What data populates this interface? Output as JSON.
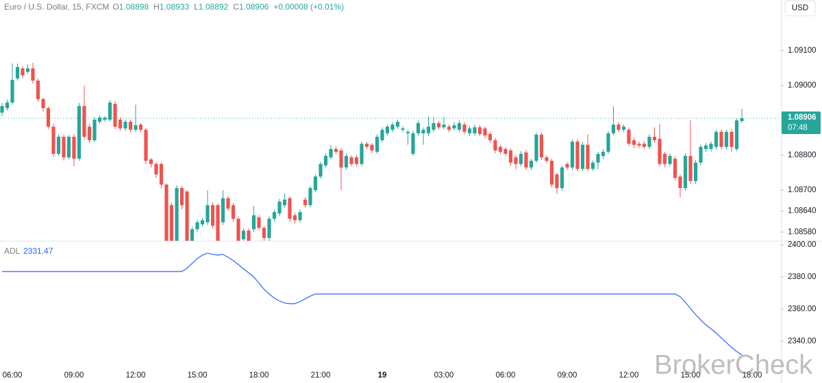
{
  "currency_button": "USD",
  "watermark": "BrokerCheck",
  "chart_data": [
    {
      "type": "candlestick",
      "title": "Euro / U.S. Dollar, 15, FXCM",
      "header": [
        {
          "key": "O",
          "text": "1.08898"
        },
        {
          "key": "H",
          "text": "1.08933"
        },
        {
          "key": "L",
          "text": "1.08892"
        },
        {
          "key": "C",
          "text": "1.08906"
        }
      ],
      "change": "+0.00008 (+0.01%)",
      "up_color": "#26a69a",
      "down_color": "#ef5350",
      "last_price": {
        "value": 1.08906,
        "label": "1.08906",
        "countdown": "07:48"
      },
      "xlim": [
        -0.4,
        151.6
      ],
      "ylim": [
        1.08555,
        1.09245
      ],
      "yticks": [
        {
          "value": 1.091,
          "label": "1.09100"
        },
        {
          "value": 1.09,
          "label": "1.09000"
        },
        {
          "value": 1.088,
          "label": "1.08800"
        },
        {
          "value": 1.087,
          "label": "1.08700"
        },
        {
          "value": 1.0864,
          "label": "1.08640"
        },
        {
          "value": 1.0858,
          "label": "1.08580"
        }
      ],
      "candles": [
        [
          1.08922,
          1.0895,
          1.08912,
          1.08941
        ],
        [
          1.08935,
          1.0896,
          1.08928,
          1.08951
        ],
        [
          1.08951,
          1.09063,
          1.08945,
          1.09016
        ],
        [
          1.0902,
          1.09063,
          1.09014,
          1.09053
        ],
        [
          1.09049,
          1.09055,
          1.0902,
          1.09029
        ],
        [
          1.09039,
          1.0906,
          1.09033,
          1.09049
        ],
        [
          1.09049,
          1.09065,
          1.09005,
          1.09014
        ],
        [
          1.09014,
          1.0902,
          1.08955,
          1.08961
        ],
        [
          1.08961,
          1.08965,
          1.08925,
          1.08935
        ],
        [
          1.08935,
          1.0894,
          1.08875,
          1.08882
        ],
        [
          1.08882,
          1.0889,
          1.08795,
          1.08804
        ],
        [
          1.08804,
          1.0886,
          1.08798,
          1.08853
        ],
        [
          1.08853,
          1.08858,
          1.08785,
          1.08794
        ],
        [
          1.08794,
          1.08858,
          1.08788,
          1.08853
        ],
        [
          1.08853,
          1.0886,
          1.08769,
          1.0879
        ],
        [
          1.0879,
          1.0895,
          1.08784,
          1.08941
        ],
        [
          1.08941,
          1.09,
          1.08845,
          1.08853
        ],
        [
          1.08882,
          1.0889,
          1.08835,
          1.08843
        ],
        [
          1.08843,
          1.0891,
          1.08838,
          1.08902
        ],
        [
          1.08896,
          1.08915,
          1.0889,
          1.08908
        ],
        [
          1.08902,
          1.08912,
          1.08895,
          1.08908
        ],
        [
          1.08902,
          1.08958,
          1.08896,
          1.08951
        ],
        [
          1.08947,
          1.08955,
          1.08875,
          1.08882
        ],
        [
          1.08902,
          1.08908,
          1.0887,
          1.08877
        ],
        [
          1.08877,
          1.08902,
          1.0887,
          1.08896
        ],
        [
          1.08896,
          1.08902,
          1.08866,
          1.08873
        ],
        [
          1.08873,
          1.08945,
          1.08866,
          1.08886
        ],
        [
          1.08888,
          1.08892,
          1.08866,
          1.08873
        ],
        [
          1.08873,
          1.08878,
          1.08775,
          1.08784
        ],
        [
          1.08788,
          1.08792,
          1.08765,
          1.08775
        ],
        [
          1.08775,
          1.0878,
          1.08735,
          1.08745
        ],
        [
          1.08775,
          1.0878,
          1.08705,
          1.08716
        ],
        [
          1.08716,
          1.0872,
          1.0854,
          1.0855
        ],
        [
          1.08657,
          1.08665,
          1.0854,
          1.0855
        ],
        [
          1.0855,
          1.08714,
          1.0854,
          1.08706
        ],
        [
          1.08706,
          1.08712,
          1.08645,
          1.08657
        ],
        [
          1.08696,
          1.087,
          1.0854,
          1.0855
        ],
        [
          1.0855,
          1.08595,
          1.0854,
          1.08588
        ],
        [
          1.08588,
          1.08615,
          1.0858,
          1.08608
        ],
        [
          1.08602,
          1.0862,
          1.08595,
          1.08614
        ],
        [
          1.08608,
          1.087,
          1.086,
          1.08657
        ],
        [
          1.08657,
          1.08665,
          1.0859,
          1.08598
        ],
        [
          1.08657,
          1.08662,
          1.0854,
          1.0855
        ],
        [
          1.08608,
          1.087,
          1.086,
          1.08677
        ],
        [
          1.08677,
          1.08683,
          1.0864,
          1.08647
        ],
        [
          1.08657,
          1.08663,
          1.0861,
          1.08618
        ],
        [
          1.08618,
          1.08625,
          1.0854,
          1.0855
        ],
        [
          1.08559,
          1.0859,
          1.0855,
          1.08584
        ],
        [
          1.08584,
          1.0859,
          1.0854,
          1.0855
        ],
        [
          1.08588,
          1.08655,
          1.0858,
          1.08628
        ],
        [
          1.08622,
          1.08628,
          1.08585,
          1.08592
        ],
        [
          1.08592,
          1.08598,
          1.08555,
          1.08563
        ],
        [
          1.08563,
          1.08625,
          1.08555,
          1.08618
        ],
        [
          1.08618,
          1.08645,
          1.0861,
          1.08637
        ],
        [
          1.08633,
          1.08675,
          1.08625,
          1.08667
        ],
        [
          1.08657,
          1.0869,
          1.0865,
          1.08673
        ],
        [
          1.08677,
          1.08683,
          1.0861,
          1.08618
        ],
        [
          1.08628,
          1.08635,
          1.08605,
          1.08614
        ],
        [
          1.08614,
          1.08645,
          1.08607,
          1.08637
        ],
        [
          1.08673,
          1.0868,
          1.0865,
          1.08657
        ],
        [
          1.08657,
          1.08712,
          1.0865,
          1.08706
        ],
        [
          1.087,
          1.08745,
          1.08695,
          1.08739
        ],
        [
          1.08739,
          1.08782,
          1.08733,
          1.08775
        ],
        [
          1.08771,
          1.08805,
          1.08765,
          1.08798
        ],
        [
          1.08794,
          1.0883,
          1.08788,
          1.08818
        ],
        [
          1.08818,
          1.08825,
          1.08803,
          1.0881
        ],
        [
          1.08814,
          1.0882,
          1.087,
          1.08765
        ],
        [
          1.08765,
          1.08805,
          1.08758,
          1.08798
        ],
        [
          1.08794,
          1.088,
          1.08768,
          1.08775
        ],
        [
          1.08794,
          1.088,
          1.08768,
          1.08775
        ],
        [
          1.08775,
          1.0884,
          1.08768,
          1.08833
        ],
        [
          1.08833,
          1.08838,
          1.08818,
          1.08824
        ],
        [
          1.0883,
          1.08835,
          1.08806,
          1.08814
        ],
        [
          1.0881,
          1.0886,
          1.08804,
          1.08853
        ],
        [
          1.08843,
          1.0888,
          1.08837,
          1.08873
        ],
        [
          1.08863,
          1.08888,
          1.08856,
          1.08882
        ],
        [
          1.08873,
          1.08895,
          1.08866,
          1.08888
        ],
        [
          1.08882,
          1.08902,
          1.08876,
          1.08896
        ],
        [
          1.08873,
          1.08883,
          1.08866,
          1.08877
        ],
        [
          1.08863,
          1.08873,
          1.0883,
          1.08867
        ],
        [
          1.08804,
          1.0887,
          1.08798,
          1.08863
        ],
        [
          1.08863,
          1.089,
          1.08856,
          1.08892
        ],
        [
          1.08863,
          1.0888,
          1.0883,
          1.08873
        ],
        [
          1.08863,
          1.0891,
          1.08856,
          1.08882
        ],
        [
          1.08873,
          1.0891,
          1.08866,
          1.08892
        ],
        [
          1.08892,
          1.08898,
          1.08874,
          1.0888
        ],
        [
          1.0888,
          1.0891,
          1.08875,
          1.08888
        ],
        [
          1.08882,
          1.08888,
          1.08866,
          1.08873
        ],
        [
          1.08877,
          1.08895,
          1.0887,
          1.08886
        ],
        [
          1.08873,
          1.089,
          1.08866,
          1.08892
        ],
        [
          1.08888,
          1.08895,
          1.0886,
          1.08867
        ],
        [
          1.08863,
          1.08884,
          1.08856,
          1.08877
        ],
        [
          1.08863,
          1.08888,
          1.08856,
          1.0888
        ],
        [
          1.0888,
          1.08887,
          1.08855,
          1.08861
        ],
        [
          1.08877,
          1.08883,
          1.0885,
          1.08857
        ],
        [
          1.08861,
          1.08867,
          1.08836,
          1.08843
        ],
        [
          1.08843,
          1.0885,
          1.08806,
          1.08814
        ],
        [
          1.08824,
          1.0883,
          1.08803,
          1.0881
        ],
        [
          1.08818,
          1.08824,
          1.08797,
          1.08804
        ],
        [
          1.08814,
          1.0882,
          1.0877,
          1.08779
        ],
        [
          1.08794,
          1.088,
          1.0876,
          1.08775
        ],
        [
          1.08775,
          1.08812,
          1.08768,
          1.08804
        ],
        [
          1.08808,
          1.08815,
          1.08758,
          1.08765
        ],
        [
          1.08765,
          1.0879,
          1.08758,
          1.08784
        ],
        [
          1.08784,
          1.08865,
          1.08778,
          1.08859
        ],
        [
          1.08859,
          1.08865,
          1.08787,
          1.08794
        ],
        [
          1.08794,
          1.088,
          1.08777,
          1.08784
        ],
        [
          1.08784,
          1.0879,
          1.08708,
          1.08716
        ],
        [
          1.08745,
          1.0875,
          1.0869,
          1.08706
        ],
        [
          1.08706,
          1.0877,
          1.08698,
          1.08765
        ],
        [
          1.08775,
          1.0878,
          1.08758,
          1.08765
        ],
        [
          1.08765,
          1.08845,
          1.08758,
          1.08839
        ],
        [
          1.08839,
          1.08845,
          1.08755,
          1.08761
        ],
        [
          1.08761,
          1.08838,
          1.08755,
          1.0883
        ],
        [
          1.0883,
          1.0886,
          1.08755,
          1.08761
        ],
        [
          1.08761,
          1.08785,
          1.08755,
          1.08779
        ],
        [
          1.08779,
          1.0881,
          1.0876,
          1.08804
        ],
        [
          1.08798,
          1.08818,
          1.0879,
          1.0881
        ],
        [
          1.0881,
          1.0887,
          1.08804,
          1.08863
        ],
        [
          1.08863,
          1.0894,
          1.08858,
          1.08888
        ],
        [
          1.08888,
          1.08895,
          1.08866,
          1.08873
        ],
        [
          1.08873,
          1.08888,
          1.08866,
          1.08882
        ],
        [
          1.08873,
          1.0888,
          1.08826,
          1.08833
        ],
        [
          1.08843,
          1.0885,
          1.0882,
          1.0883
        ],
        [
          1.08833,
          1.0884,
          1.0882,
          1.08828
        ],
        [
          1.08833,
          1.0884,
          1.08818,
          1.08824
        ],
        [
          1.08824,
          1.0886,
          1.08817,
          1.08853
        ],
        [
          1.08853,
          1.0888,
          1.08836,
          1.08843
        ],
        [
          1.08847,
          1.0889,
          1.08768,
          1.08775
        ],
        [
          1.08804,
          1.0881,
          1.08766,
          1.08775
        ],
        [
          1.08775,
          1.08805,
          1.08768,
          1.08798
        ],
        [
          1.0879,
          1.08797,
          1.08728,
          1.08735
        ],
        [
          1.08739,
          1.08745,
          1.0868,
          1.08706
        ],
        [
          1.08706,
          1.08805,
          1.08698,
          1.08798
        ],
        [
          1.08798,
          1.089,
          1.08718,
          1.08726
        ],
        [
          1.08726,
          1.08786,
          1.08718,
          1.08779
        ],
        [
          1.08779,
          1.0883,
          1.08772,
          1.08824
        ],
        [
          1.08818,
          1.08835,
          1.0881,
          1.08828
        ],
        [
          1.08818,
          1.0884,
          1.0881,
          1.08833
        ],
        [
          1.08824,
          1.08873,
          1.08816,
          1.08867
        ],
        [
          1.08867,
          1.08875,
          1.08817,
          1.08824
        ],
        [
          1.08824,
          1.08873,
          1.08816,
          1.08867
        ],
        [
          1.08867,
          1.08875,
          1.0881,
          1.08824
        ],
        [
          1.08818,
          1.08905,
          1.08812,
          1.089
        ],
        [
          1.08898,
          1.08933,
          1.08892,
          1.08906
        ]
      ]
    },
    {
      "type": "line",
      "series": [
        {
          "name": "ADL",
          "color": "#2962ff",
          "values": [
            2383.4,
            2383.4,
            2383.4,
            2383.4,
            2383.4,
            2383.4,
            2383.4,
            2383.4,
            2383.4,
            2383.4,
            2383.4,
            2383.4,
            2383.4,
            2383.4,
            2383.4,
            2383.4,
            2383.4,
            2383.4,
            2383.4,
            2383.4,
            2383.4,
            2383.4,
            2383.4,
            2383.4,
            2383.4,
            2383.4,
            2383.4,
            2383.4,
            2383.4,
            2383.4,
            2383.4,
            2383.4,
            2383.4,
            2383.4,
            2383.4,
            2383.4,
            2385.5,
            2388.5,
            2391.5,
            2393.6,
            2394.9,
            2394.0,
            2393.6,
            2394.0,
            2392.3,
            2390.2,
            2387.7,
            2385.1,
            2382.6,
            2380.0,
            2376.2,
            2372.3,
            2369.4,
            2366.8,
            2365.1,
            2363.8,
            2363.4,
            2363.4,
            2364.7,
            2366.4,
            2368.1,
            2369.4,
            2369.4,
            2369.4,
            2369.4,
            2369.4,
            2369.4,
            2369.4,
            2369.4,
            2369.4,
            2369.4,
            2369.4,
            2369.4,
            2369.4,
            2369.4,
            2369.4,
            2369.4,
            2369.4,
            2369.4,
            2369.4,
            2369.4,
            2369.4,
            2369.4,
            2369.4,
            2369.4,
            2369.4,
            2369.4,
            2369.4,
            2369.4,
            2369.4,
            2369.4,
            2369.4,
            2369.4,
            2369.4,
            2369.4,
            2369.4,
            2369.4,
            2369.4,
            2369.4,
            2369.4,
            2369.4,
            2369.4,
            2369.4,
            2369.4,
            2369.4,
            2369.4,
            2369.4,
            2369.4,
            2369.4,
            2369.4,
            2369.4,
            2369.4,
            2369.4,
            2369.4,
            2369.4,
            2369.4,
            2369.4,
            2369.4,
            2369.4,
            2369.4,
            2369.4,
            2369.4,
            2369.4,
            2369.4,
            2369.4,
            2369.4,
            2369.4,
            2369.4,
            2369.4,
            2369.4,
            2369.4,
            2369.4,
            2367.7,
            2364.3,
            2360.4,
            2356.6,
            2353.2,
            2350.2,
            2347.7,
            2345.1,
            2342.1,
            2339.1,
            2336.2,
            2333.6,
            2331.47
          ]
        }
      ],
      "last_value_label": "2331.47",
      "xlim": [
        -0.4,
        151.6
      ],
      "ylim": [
        2322.55,
        2402.55
      ],
      "yticks": [
        {
          "value": 2400,
          "label": "2400.00"
        },
        {
          "value": 2380,
          "label": "2380.00"
        },
        {
          "value": 2360,
          "label": "2360.00"
        },
        {
          "value": 2340,
          "label": "2340.00"
        }
      ],
      "xticks": [
        {
          "value": 2,
          "label": "06:00"
        },
        {
          "value": 14,
          "label": "09:00"
        },
        {
          "value": 26,
          "label": "12:00"
        },
        {
          "value": 38,
          "label": "15:00"
        },
        {
          "value": 50,
          "label": "18:00"
        },
        {
          "value": 62,
          "label": "21:00"
        },
        {
          "value": 74,
          "label": "19"
        },
        {
          "value": 86,
          "label": "03:00"
        },
        {
          "value": 98,
          "label": "06:00"
        },
        {
          "value": 110,
          "label": "09:00"
        },
        {
          "value": 122,
          "label": "12:00"
        },
        {
          "value": 134,
          "label": "15:00"
        },
        {
          "value": 146,
          "label": "18:00"
        }
      ]
    }
  ]
}
